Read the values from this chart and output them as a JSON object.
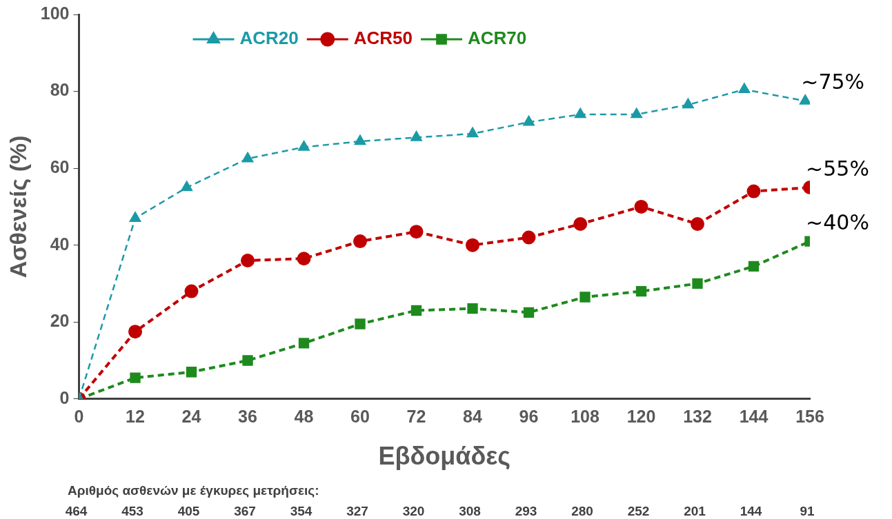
{
  "chart_data": {
    "type": "line",
    "xlabel": "Εβδομάδες",
    "ylabel": "Ασθενείς (%)",
    "xlim": [
      0,
      156
    ],
    "xticks": [
      0,
      12,
      24,
      36,
      48,
      60,
      72,
      84,
      96,
      108,
      120,
      132,
      144,
      156
    ],
    "ylim": [
      0,
      100
    ],
    "yticks": [
      0,
      20,
      40,
      60,
      80,
      100
    ],
    "grid": false,
    "legend": "top left",
    "series": [
      {
        "name": "ACR20",
        "color": "#1b9aa6",
        "marker": "triangle",
        "line_style": "dashed",
        "x": [
          0,
          12,
          23,
          36,
          48,
          60,
          72,
          84,
          96,
          107,
          119,
          130,
          142,
          155
        ],
        "values": [
          0,
          47,
          55,
          62.5,
          65.5,
          67,
          68,
          69,
          72,
          74,
          74,
          76.5,
          80.5,
          77.5
        ]
      },
      {
        "name": "ACR50",
        "color": "#c00000",
        "marker": "circle",
        "line_style": "dashed",
        "x": [
          0,
          12,
          24,
          36,
          48,
          60,
          72,
          84,
          96,
          107,
          120,
          132,
          144,
          156
        ],
        "values": [
          0,
          17.5,
          28,
          36,
          36.5,
          41,
          43.5,
          40,
          42,
          45.5,
          50,
          45.5,
          54,
          55
        ]
      },
      {
        "name": "ACR70",
        "color": "#1e8a1e",
        "marker": "square",
        "line_style": "dashed",
        "x": [
          0,
          12,
          24,
          36,
          48,
          60,
          72,
          84,
          96,
          108,
          120,
          132,
          144,
          156
        ],
        "values": [
          0,
          5.5,
          7,
          10,
          14.5,
          19.5,
          23,
          23.5,
          22.5,
          26.5,
          28,
          30,
          34.5,
          41
        ]
      }
    ],
    "annotations": [
      "~75%",
      "~55%",
      "~40%",
      "Αριθμός ασθενών με έγκυρες μετρήσεις:",
      "464",
      "453",
      "405",
      "367",
      "354",
      "327",
      "320",
      "308",
      "293",
      "280",
      "252",
      "201",
      "144",
      "91"
    ]
  }
}
